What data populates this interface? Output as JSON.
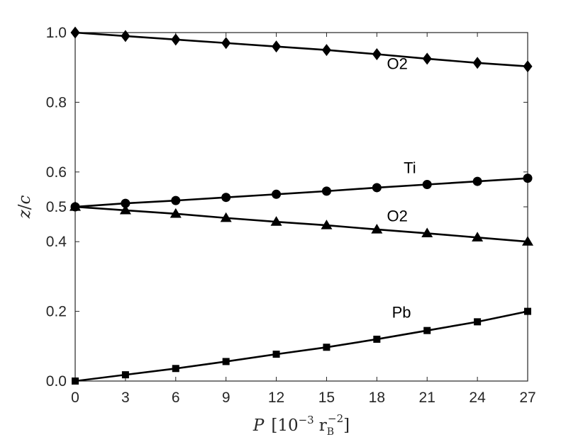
{
  "chart_data": {
    "type": "line",
    "xlim": [
      0,
      27
    ],
    "ylim": [
      0,
      1
    ],
    "x_ticks": [
      0,
      3,
      6,
      9,
      12,
      15,
      18,
      21,
      24,
      27
    ],
    "x_tick_labels": [
      "0",
      "3",
      "6",
      "9",
      "12",
      "15",
      "18",
      "21",
      "24",
      "27"
    ],
    "y_ticks": [
      0.0,
      0.2,
      0.4,
      0.5,
      0.6,
      0.8,
      1.0
    ],
    "y_tick_labels": [
      "0.0",
      "0.2",
      "0.4",
      "0.5",
      "0.6",
      "0.8",
      "1.0"
    ],
    "xlabel": {
      "symbol": "P",
      "bracket_open": "[",
      "mantissa": "10",
      "exponent": "−3",
      "unit": "r",
      "unit_subscript": "B",
      "unit_exponent": "−2",
      "bracket_close": "]"
    },
    "ylabel": {
      "numerator": "z",
      "slash": "/",
      "denominator": "c"
    },
    "grid": false,
    "x": [
      0,
      3,
      6,
      9,
      12,
      15,
      18,
      21,
      24,
      27
    ],
    "series": [
      {
        "label": "O2",
        "marker": "diamond",
        "values": [
          1.0,
          0.99,
          0.98,
          0.97,
          0.96,
          0.95,
          0.938,
          0.925,
          0.913,
          0.903
        ],
        "label_at": [
          18.6,
          0.895
        ]
      },
      {
        "label": "Ti",
        "marker": "circle",
        "values": [
          0.5,
          0.51,
          0.518,
          0.527,
          0.536,
          0.545,
          0.555,
          0.564,
          0.573,
          0.582
        ],
        "label_at": [
          19.6,
          0.597
        ]
      },
      {
        "label": "O2",
        "marker": "triangle",
        "values": [
          0.5,
          0.49,
          0.48,
          0.468,
          0.457,
          0.447,
          0.435,
          0.424,
          0.412,
          0.4
        ],
        "label_at": [
          18.6,
          0.458
        ]
      },
      {
        "label": "Pb",
        "marker": "square",
        "values": [
          0.0,
          0.018,
          0.036,
          0.056,
          0.077,
          0.097,
          0.12,
          0.145,
          0.17,
          0.2
        ],
        "label_at": [
          18.9,
          0.182
        ]
      }
    ],
    "colors": {
      "line": "#000000",
      "axes": "#262626"
    }
  }
}
